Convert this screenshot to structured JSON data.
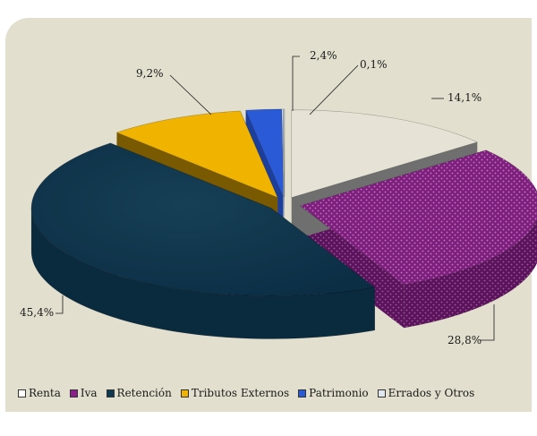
{
  "chart_data": {
    "type": "pie",
    "title": "",
    "categories": [
      "Renta",
      "Iva",
      "Retención",
      "Tributos Externos",
      "Patrimonio",
      "Errados y Otros"
    ],
    "values": [
      14.1,
      28.8,
      45.4,
      9.2,
      2.4,
      0.1
    ],
    "value_labels": [
      "14,1%",
      "28,8%",
      "45,4%",
      "9,2%",
      "2,4%",
      "0,1%"
    ],
    "colors": [
      "#e6e3d6",
      "#8a1f8a",
      "#0f3a52",
      "#f0b400",
      "#2b5ad6",
      "#b8c6d6"
    ],
    "style": "3d-exploded",
    "legend_position": "bottom"
  }
}
